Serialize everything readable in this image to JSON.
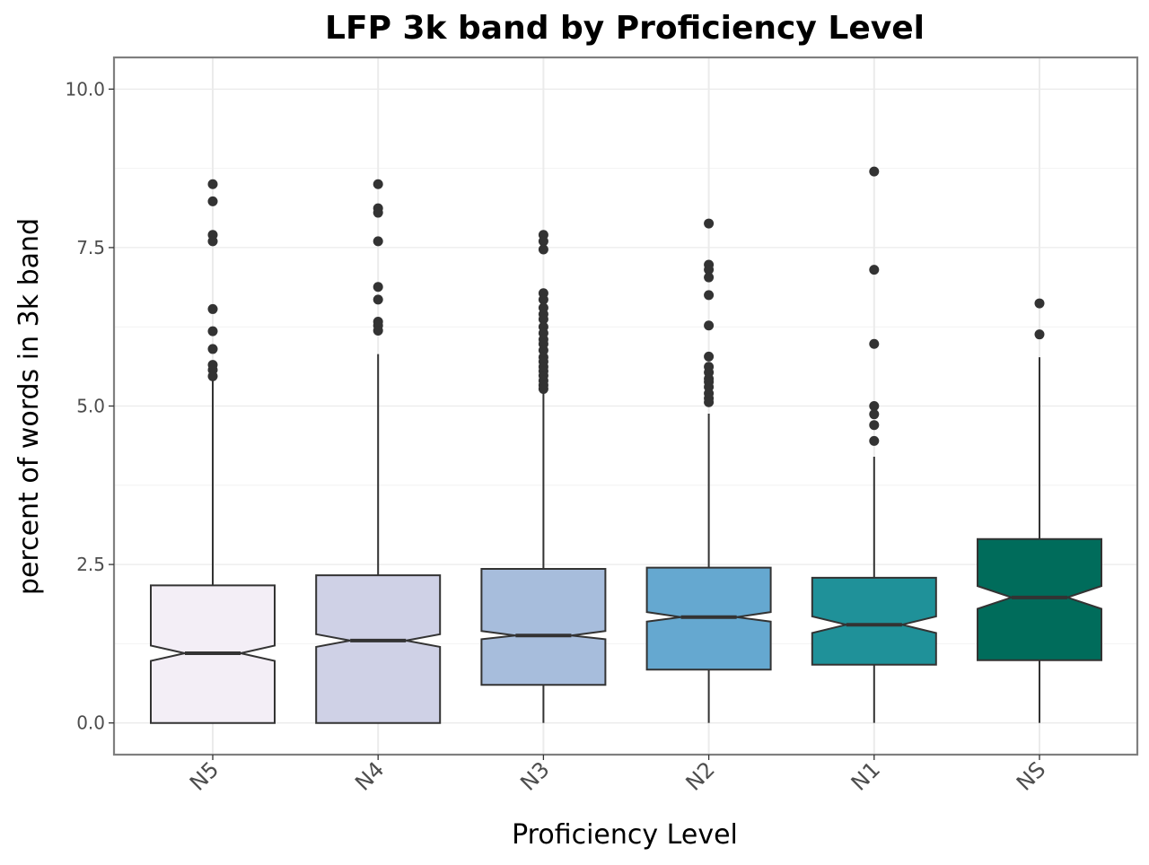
{
  "chart_data": {
    "type": "boxplot",
    "title": "LFP 3k band by Proficiency Level",
    "xlabel": "Proficiency Level",
    "ylabel": "percent of words in 3k band",
    "categories": [
      "N5",
      "N4",
      "N3",
      "N2",
      "N1",
      "NS"
    ],
    "ylim": [
      -0.5,
      10.5
    ],
    "yticks": [
      0.0,
      2.5,
      5.0,
      7.5,
      10.0
    ],
    "ytick_labels": [
      "0.0",
      "2.5",
      "5.0",
      "7.5",
      "10.0"
    ],
    "notched": true,
    "grid": true,
    "legend": "none",
    "boxes": [
      {
        "category": "N5",
        "color": "#f3eef6",
        "whisker_low": 0.0,
        "q1": 0.0,
        "median": 1.1,
        "q3": 2.17,
        "whisker_high": 5.4,
        "notch_low": 0.98,
        "notch_high": 1.22,
        "outliers": [
          8.5,
          8.23,
          7.7,
          7.6,
          6.53,
          6.18,
          5.9,
          5.65,
          5.57,
          5.47
        ]
      },
      {
        "category": "N4",
        "color": "#cfd1e6",
        "whisker_low": 0.0,
        "q1": 0.0,
        "median": 1.3,
        "q3": 2.33,
        "whisker_high": 5.82,
        "notch_low": 1.2,
        "notch_high": 1.4,
        "outliers": [
          8.5,
          8.12,
          8.05,
          7.6,
          6.88,
          6.68,
          6.33,
          6.27,
          6.19
        ]
      },
      {
        "category": "N3",
        "color": "#a7bddc",
        "whisker_low": 0.0,
        "q1": 0.6,
        "median": 1.38,
        "q3": 2.43,
        "whisker_high": 5.22,
        "notch_low": 1.32,
        "notch_high": 1.45,
        "outliers": [
          7.7,
          7.6,
          7.47,
          6.78,
          6.68,
          6.55,
          6.45,
          6.37,
          6.25,
          6.15,
          6.05,
          5.98,
          5.88,
          5.77,
          5.7,
          5.62,
          5.55,
          5.48,
          5.4,
          5.33,
          5.27
        ]
      },
      {
        "category": "N2",
        "color": "#65a8d0",
        "whisker_low": 0.0,
        "q1": 0.84,
        "median": 1.67,
        "q3": 2.45,
        "whisker_high": 4.88,
        "notch_low": 1.6,
        "notch_high": 1.75,
        "outliers": [
          7.88,
          7.23,
          7.15,
          7.03,
          6.75,
          6.27,
          5.78,
          5.62,
          5.53,
          5.43,
          5.38,
          5.3,
          5.2,
          5.12,
          5.06
        ]
      },
      {
        "category": "N1",
        "color": "#1f9199",
        "whisker_low": 0.0,
        "q1": 0.92,
        "median": 1.55,
        "q3": 2.29,
        "whisker_high": 4.2,
        "notch_low": 1.42,
        "notch_high": 1.68,
        "outliers": [
          8.7,
          7.15,
          5.98,
          5.0,
          4.87,
          4.7,
          4.45
        ]
      },
      {
        "category": "NS",
        "color": "#006c5b",
        "whisker_low": 0.0,
        "q1": 0.99,
        "median": 1.98,
        "q3": 2.9,
        "whisker_high": 5.77,
        "notch_low": 1.8,
        "notch_high": 2.16,
        "outliers": [
          6.62,
          6.13
        ]
      }
    ]
  }
}
